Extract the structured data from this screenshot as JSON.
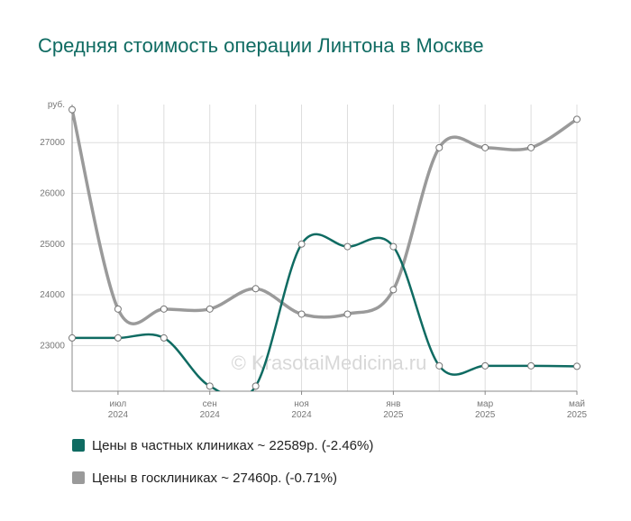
{
  "title": "Средняя стоимость операции Линтона в Москве",
  "watermark": "© KrasotaiMedicina.ru",
  "colors": {
    "private": "#0f6b62",
    "public": "#9a9a9a",
    "grid": "#dddddd",
    "axis": "#888888"
  },
  "legend": [
    {
      "text": "Цены в частных клиниках ~ 22589р. (-2.46%)",
      "color": "#0f6b62"
    },
    {
      "text": "Цены в госклиниках ~ 27460р. (-0.71%)",
      "color": "#9a9a9a"
    }
  ],
  "chart_data": {
    "type": "line",
    "y_unit": "руб.",
    "ylim": [
      22100,
      27750
    ],
    "yticks": [
      23000,
      24000,
      25000,
      26000,
      27000
    ],
    "x": [
      "2024-06",
      "2024-07",
      "2024-08",
      "2024-09",
      "2024-10",
      "2024-11",
      "2024-12",
      "2025-01",
      "2025-02",
      "2025-03",
      "2025-04",
      "2025-05"
    ],
    "xtick_labels": [
      {
        "index": 1,
        "month": "июл",
        "year": "2024"
      },
      {
        "index": 3,
        "month": "сен",
        "year": "2024"
      },
      {
        "index": 5,
        "month": "ноя",
        "year": "2024"
      },
      {
        "index": 7,
        "month": "янв",
        "year": "2025"
      },
      {
        "index": 9,
        "month": "мар",
        "year": "2025"
      },
      {
        "index": 11,
        "month": "май",
        "year": "2025"
      }
    ],
    "grid": true,
    "legend_position": "bottom",
    "series": [
      {
        "key": "private",
        "values": [
          23150,
          23150,
          23150,
          22200,
          22200,
          25000,
          24950,
          24950,
          22600,
          22600,
          22600,
          22590
        ]
      },
      {
        "key": "public",
        "values": [
          27650,
          23720,
          23720,
          23720,
          24120,
          23620,
          23620,
          24100,
          26900,
          26900,
          26900,
          27460
        ]
      }
    ]
  }
}
